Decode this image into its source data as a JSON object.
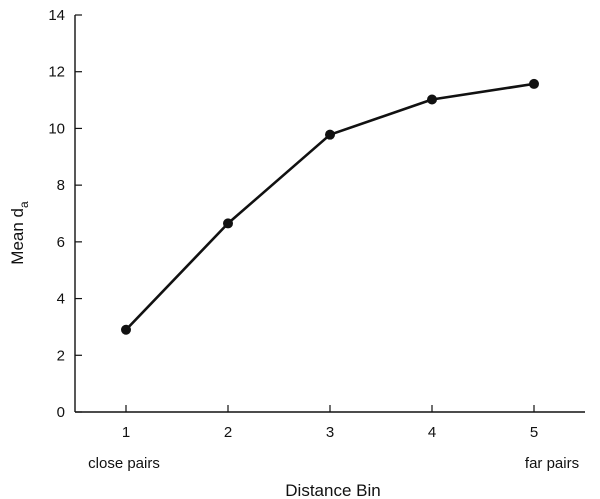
{
  "chart_data": {
    "type": "line",
    "x": [
      1,
      2,
      3,
      4,
      5
    ],
    "values": [
      2.9,
      6.65,
      9.78,
      11.02,
      11.57
    ],
    "xlabel": "Distance Bin",
    "ylabel_main": "Mean d",
    "ylabel_sub": "a",
    "xticks": [
      "1",
      "2",
      "3",
      "4",
      "5"
    ],
    "yticks": [
      "0",
      "2",
      "4",
      "6",
      "8",
      "10",
      "12",
      "14"
    ],
    "ylim": [
      0,
      14
    ],
    "xlim": [
      0.5,
      5.5
    ],
    "x_endpoint_labels": {
      "left": "close pairs",
      "right": "far pairs"
    },
    "grid": false,
    "line_color": "#111111",
    "marker_color": "#111111"
  }
}
